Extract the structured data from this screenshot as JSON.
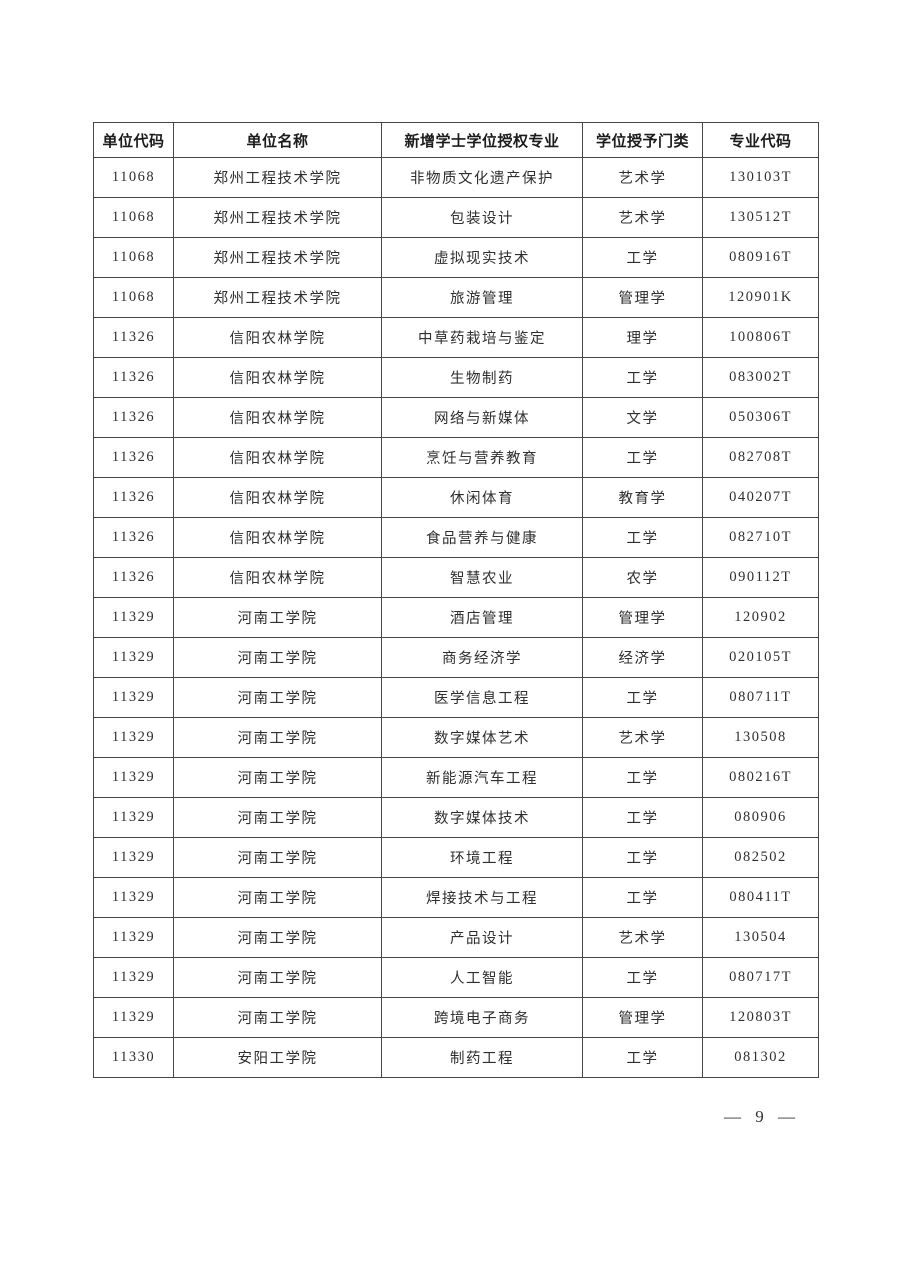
{
  "page": {
    "footer_page_number": "— 9 —"
  },
  "colors": {
    "table_border": "#474747",
    "body_text": "#2e2e2e",
    "header_text": "#1c1c1c",
    "background": "#ffffff"
  },
  "table": {
    "headers": [
      "单位代码",
      "单位名称",
      "新增学士学位授权专业",
      "学位授予门类",
      "专业代码"
    ],
    "rows": [
      [
        "11068",
        "郑州工程技术学院",
        "非物质文化遗产保护",
        "艺术学",
        "130103T"
      ],
      [
        "11068",
        "郑州工程技术学院",
        "包装设计",
        "艺术学",
        "130512T"
      ],
      [
        "11068",
        "郑州工程技术学院",
        "虚拟现实技术",
        "工学",
        "080916T"
      ],
      [
        "11068",
        "郑州工程技术学院",
        "旅游管理",
        "管理学",
        "120901K"
      ],
      [
        "11326",
        "信阳农林学院",
        "中草药栽培与鉴定",
        "理学",
        "100806T"
      ],
      [
        "11326",
        "信阳农林学院",
        "生物制药",
        "工学",
        "083002T"
      ],
      [
        "11326",
        "信阳农林学院",
        "网络与新媒体",
        "文学",
        "050306T"
      ],
      [
        "11326",
        "信阳农林学院",
        "烹饪与营养教育",
        "工学",
        "082708T"
      ],
      [
        "11326",
        "信阳农林学院",
        "休闲体育",
        "教育学",
        "040207T"
      ],
      [
        "11326",
        "信阳农林学院",
        "食品营养与健康",
        "工学",
        "082710T"
      ],
      [
        "11326",
        "信阳农林学院",
        "智慧农业",
        "农学",
        "090112T"
      ],
      [
        "11329",
        "河南工学院",
        "酒店管理",
        "管理学",
        "120902"
      ],
      [
        "11329",
        "河南工学院",
        "商务经济学",
        "经济学",
        "020105T"
      ],
      [
        "11329",
        "河南工学院",
        "医学信息工程",
        "工学",
        "080711T"
      ],
      [
        "11329",
        "河南工学院",
        "数字媒体艺术",
        "艺术学",
        "130508"
      ],
      [
        "11329",
        "河南工学院",
        "新能源汽车工程",
        "工学",
        "080216T"
      ],
      [
        "11329",
        "河南工学院",
        "数字媒体技术",
        "工学",
        "080906"
      ],
      [
        "11329",
        "河南工学院",
        "环境工程",
        "工学",
        "082502"
      ],
      [
        "11329",
        "河南工学院",
        "焊接技术与工程",
        "工学",
        "080411T"
      ],
      [
        "11329",
        "河南工学院",
        "产品设计",
        "艺术学",
        "130504"
      ],
      [
        "11329",
        "河南工学院",
        "人工智能",
        "工学",
        "080717T"
      ],
      [
        "11329",
        "河南工学院",
        "跨境电子商务",
        "管理学",
        "120803T"
      ],
      [
        "11330",
        "安阳工学院",
        "制药工程",
        "工学",
        "081302"
      ]
    ]
  }
}
